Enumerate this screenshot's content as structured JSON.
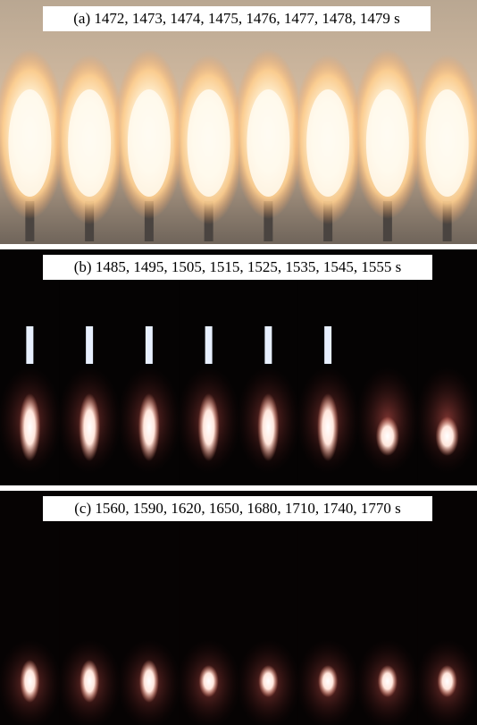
{
  "panels": [
    {
      "label": "(a) 1472, 1473, 1474, 1475, 1476, 1477, 1478, 1479 s"
    },
    {
      "label": "(b) 1485, 1495, 1505, 1515, 1525, 1535, 1545, 1555 s"
    },
    {
      "label": "(c) 1560, 1590, 1620, 1650, 1680, 1710, 1740, 1770 s"
    }
  ]
}
